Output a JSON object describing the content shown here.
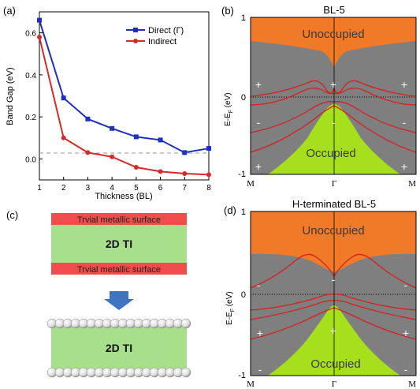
{
  "panels": {
    "a": {
      "label": "(a)",
      "xlabel": "Thickness (BL)",
      "ylabel": "Band Gap (eV)",
      "xticks": [
        "1",
        "2",
        "3",
        "4",
        "5",
        "6",
        "7",
        "8"
      ],
      "yticks": [
        "0.0",
        "0.2",
        "0.4",
        "0.6"
      ],
      "legend": [
        "Direct (Γ)",
        "Indirect"
      ]
    },
    "b": {
      "label": "(b)",
      "title": "BL-5",
      "unocc": "Unoccupied",
      "occ": "Occupied",
      "ylabel": "E-E",
      "ylabel_sub": "F",
      "ylabel_unit": " (eV)",
      "yticks": [
        "1",
        "0",
        "-1"
      ],
      "xticks": [
        "M",
        "Γ",
        "M"
      ],
      "signs": [
        "+",
        "+",
        "+",
        "-",
        "-",
        "-",
        "+",
        "+"
      ]
    },
    "c": {
      "label": "(c)",
      "surface_top": "Trvial  metallic surface",
      "core": "2D TI",
      "surface_bottom": "Trvial metallic surface",
      "core2": "2D TI"
    },
    "d": {
      "label": "(d)",
      "title": "H-terminated BL-5",
      "unocc": "Unoccupied",
      "occ": "Occupied",
      "ylabel": "E-E",
      "ylabel_sub": "F",
      "ylabel_unit": " (eV)",
      "yticks": [
        "1",
        "0",
        "-1"
      ],
      "xticks": [
        "M",
        "Γ",
        "M"
      ],
      "signs": [
        "-",
        "-",
        "-",
        "+",
        "+",
        "+",
        "-",
        "-"
      ]
    }
  },
  "colors": {
    "direct": "#1f2fbf",
    "indirect": "#d42a2a",
    "unocc": "#f07a28",
    "occ": "#a6e01c",
    "gap": "#7f7f7f",
    "band": "#d62020",
    "surface": "#f04c4c",
    "core": "#a8df8a",
    "arrow": "#3f74c0"
  },
  "chart_data": {
    "type": "line",
    "x": [
      1,
      2,
      3,
      4,
      5,
      6,
      7,
      8
    ],
    "xlabel": "Thickness (BL)",
    "ylabel": "Band Gap (eV)",
    "xlim": [
      1,
      8
    ],
    "ylim": [
      -0.1,
      0.7
    ],
    "series": [
      {
        "name": "Direct (Γ)",
        "values": [
          0.66,
          0.29,
          0.19,
          0.145,
          0.105,
          0.09,
          0.03,
          0.05
        ]
      },
      {
        "name": "Indirect",
        "values": [
          0.58,
          0.1,
          0.03,
          0.01,
          -0.04,
          -0.06,
          -0.07,
          -0.075
        ]
      }
    ]
  }
}
